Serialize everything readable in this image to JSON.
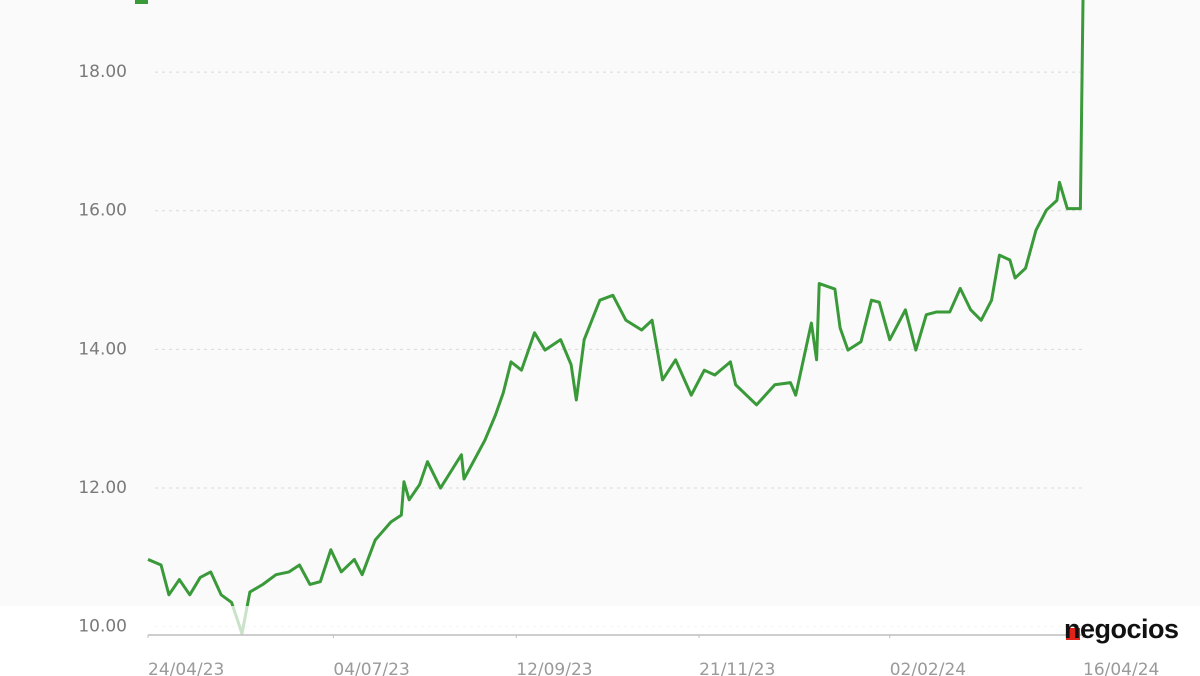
{
  "chart_data": {
    "type": "line",
    "x": [
      "2023-04-24",
      "2023-04-29",
      "2023-05-02",
      "2023-05-06",
      "2023-05-10",
      "2023-05-14",
      "2023-05-18",
      "2023-05-22",
      "2023-05-26",
      "2023-05-30",
      "2023-06-02",
      "2023-06-07",
      "2023-06-12",
      "2023-06-17",
      "2023-06-21",
      "2023-06-25",
      "2023-06-29",
      "2023-07-03",
      "2023-07-07",
      "2023-07-12",
      "2023-07-15",
      "2023-07-20",
      "2023-07-26",
      "2023-07-30",
      "2023-07-31",
      "2023-08-02",
      "2023-08-06",
      "2023-08-09",
      "2023-08-14",
      "2023-08-22",
      "2023-08-23",
      "2023-08-31",
      "2023-09-04",
      "2023-09-07",
      "2023-09-10",
      "2023-09-14",
      "2023-09-19",
      "2023-09-23",
      "2023-09-29",
      "2023-10-03",
      "2023-10-05",
      "2023-10-08",
      "2023-10-14",
      "2023-10-19",
      "2023-10-24",
      "2023-10-30",
      "2023-11-03",
      "2023-11-07",
      "2023-11-12",
      "2023-11-18",
      "2023-11-23",
      "2023-11-27",
      "2023-12-03",
      "2023-12-05",
      "2023-12-13",
      "2023-12-20",
      "2023-12-26",
      "2023-12-28",
      "2024-01-03",
      "2024-01-05",
      "2024-01-06",
      "2024-01-12",
      "2024-01-14",
      "2024-01-17",
      "2024-01-22",
      "2024-01-26",
      "2024-01-29",
      "2024-02-02",
      "2024-02-08",
      "2024-02-12",
      "2024-02-16",
      "2024-02-20",
      "2024-02-25",
      "2024-02-29",
      "2024-03-04",
      "2024-03-08",
      "2024-03-12",
      "2024-03-15",
      "2024-03-19",
      "2024-03-21",
      "2024-03-25",
      "2024-03-29",
      "2024-04-02",
      "2024-04-06",
      "2024-04-07",
      "2024-04-10",
      "2024-04-15",
      "2024-04-16"
    ],
    "series": [
      {
        "color": "#3a9a3a",
        "values": [
          10.97,
          10.89,
          10.46,
          10.68,
          10.46,
          10.71,
          10.79,
          10.46,
          10.35,
          9.9,
          10.5,
          10.61,
          10.75,
          10.79,
          10.89,
          10.61,
          10.65,
          11.11,
          10.79,
          10.97,
          10.75,
          11.25,
          11.51,
          11.61,
          12.09,
          11.83,
          12.05,
          12.38,
          12.0,
          12.48,
          12.13,
          12.69,
          13.05,
          13.37,
          13.82,
          13.7,
          14.24,
          13.99,
          14.14,
          13.78,
          13.27,
          14.14,
          14.71,
          14.78,
          14.42,
          14.28,
          14.42,
          13.56,
          13.85,
          13.34,
          13.7,
          13.63,
          13.82,
          13.49,
          13.2,
          13.49,
          13.52,
          13.34,
          14.38,
          13.85,
          14.95,
          14.87,
          14.31,
          13.99,
          14.11,
          14.71,
          14.68,
          14.14,
          14.57,
          13.99,
          14.5,
          14.54,
          14.54,
          14.88,
          14.57,
          14.42,
          14.71,
          15.36,
          15.29,
          15.03,
          15.17,
          15.72,
          16.01,
          16.15,
          16.41,
          16.03,
          16.03,
          19.04
        ]
      }
    ],
    "xlim": [
      "2023-04-24",
      "2024-04-16"
    ],
    "xticks": [
      {
        "value": "2023-04-24",
        "label": "24/04/23"
      },
      {
        "value": "2023-07-04",
        "label": "04/07/23"
      },
      {
        "value": "2023-09-12",
        "label": "12/09/23"
      },
      {
        "value": "2023-11-21",
        "label": "21/11/23"
      },
      {
        "value": "2024-02-02",
        "label": "02/02/24"
      },
      {
        "value": "2024-04-16",
        "label": "16/04/24"
      }
    ],
    "ylim": [
      9.88,
      19.04
    ],
    "yticks": [
      {
        "value": 10,
        "label": "10.00"
      },
      {
        "value": 12,
        "label": "12.00"
      },
      {
        "value": 14,
        "label": "14.00"
      },
      {
        "value": 16,
        "label": "16.00"
      },
      {
        "value": 18,
        "label": "18.00"
      }
    ],
    "grid": true
  },
  "brand": "negocios"
}
